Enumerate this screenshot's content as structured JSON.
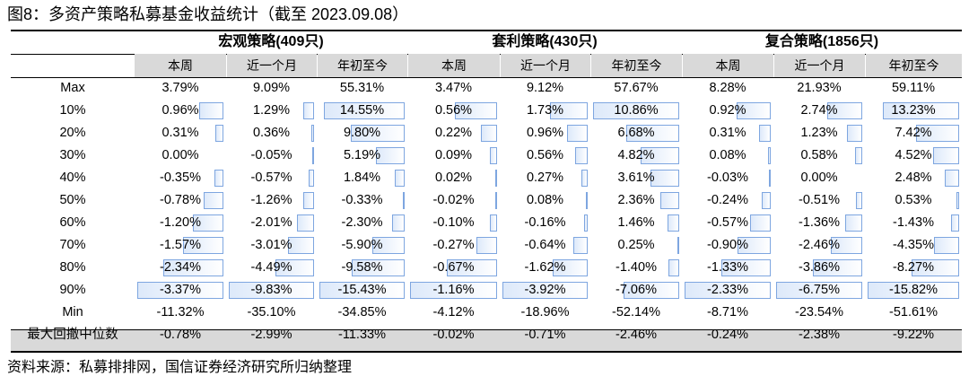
{
  "title": "图8：多资产策略私募基金收益统计（截至 2023.09.08）",
  "source": "资料来源：私募排排网，国信证券经济研究所归纳整理",
  "colors": {
    "bar_border": "#7ea6e0",
    "bar_fill": "#dde9fa",
    "header_band": "#d9d9d9"
  },
  "groups": [
    "宏观策略(409只)",
    "套利策略(430只)",
    "复合策略(1856只)"
  ],
  "subheaders": [
    "本周",
    "近一个月",
    "年初至今"
  ],
  "rows": [
    {
      "label": "Max",
      "cells": [
        "3.79%",
        "9.09%",
        "55.31%",
        "3.47%",
        "9.12%",
        "57.67%",
        "8.28%",
        "21.93%",
        "59.11%"
      ]
    },
    {
      "label": "10%",
      "cells": [
        "0.96%",
        "1.29%",
        "14.55%",
        "0.56%",
        "1.73%",
        "10.86%",
        "0.92%",
        "2.74%",
        "13.23%"
      ]
    },
    {
      "label": "20%",
      "cells": [
        "0.31%",
        "0.36%",
        "9.80%",
        "0.22%",
        "0.96%",
        "6.68%",
        "0.31%",
        "1.23%",
        "7.42%"
      ]
    },
    {
      "label": "30%",
      "cells": [
        "0.00%",
        "-0.05%",
        "5.19%",
        "0.09%",
        "0.56%",
        "4.82%",
        "0.08%",
        "0.58%",
        "4.52%"
      ]
    },
    {
      "label": "40%",
      "cells": [
        "-0.35%",
        "-0.57%",
        "1.84%",
        "0.02%",
        "0.27%",
        "3.61%",
        "-0.03%",
        "0.00%",
        "2.48%"
      ]
    },
    {
      "label": "50%",
      "cells": [
        "-0.78%",
        "-1.26%",
        "-0.33%",
        "-0.02%",
        "0.08%",
        "2.36%",
        "-0.24%",
        "-0.51%",
        "0.53%"
      ]
    },
    {
      "label": "60%",
      "cells": [
        "-1.20%",
        "-2.01%",
        "-2.30%",
        "-0.10%",
        "-0.16%",
        "1.46%",
        "-0.57%",
        "-1.36%",
        "-1.43%"
      ]
    },
    {
      "label": "70%",
      "cells": [
        "-1.57%",
        "-3.01%",
        "-5.90%",
        "-0.27%",
        "-0.64%",
        "0.25%",
        "-0.90%",
        "-2.46%",
        "-4.35%"
      ]
    },
    {
      "label": "80%",
      "cells": [
        "-2.34%",
        "-4.49%",
        "-9.58%",
        "-0.67%",
        "-1.62%",
        "-1.40%",
        "-1.33%",
        "-3.86%",
        "-8.27%"
      ]
    },
    {
      "label": "90%",
      "cells": [
        "-3.37%",
        "-9.83%",
        "-15.43%",
        "-1.16%",
        "-3.92%",
        "-7.06%",
        "-2.33%",
        "-6.75%",
        "-15.82%"
      ]
    },
    {
      "label": "Min",
      "cells": [
        "-11.32%",
        "-35.10%",
        "-34.85%",
        "-4.12%",
        "-18.96%",
        "-52.14%",
        "-8.71%",
        "-23.54%",
        "-51.61%"
      ]
    },
    {
      "label": "最大回撤中位数",
      "cells": [
        "-0.78%",
        "-2.99%",
        "-11.33%",
        "-0.02%",
        "-0.71%",
        "-2.46%",
        "-0.24%",
        "-2.38%",
        "-9.22%"
      ]
    }
  ]
}
